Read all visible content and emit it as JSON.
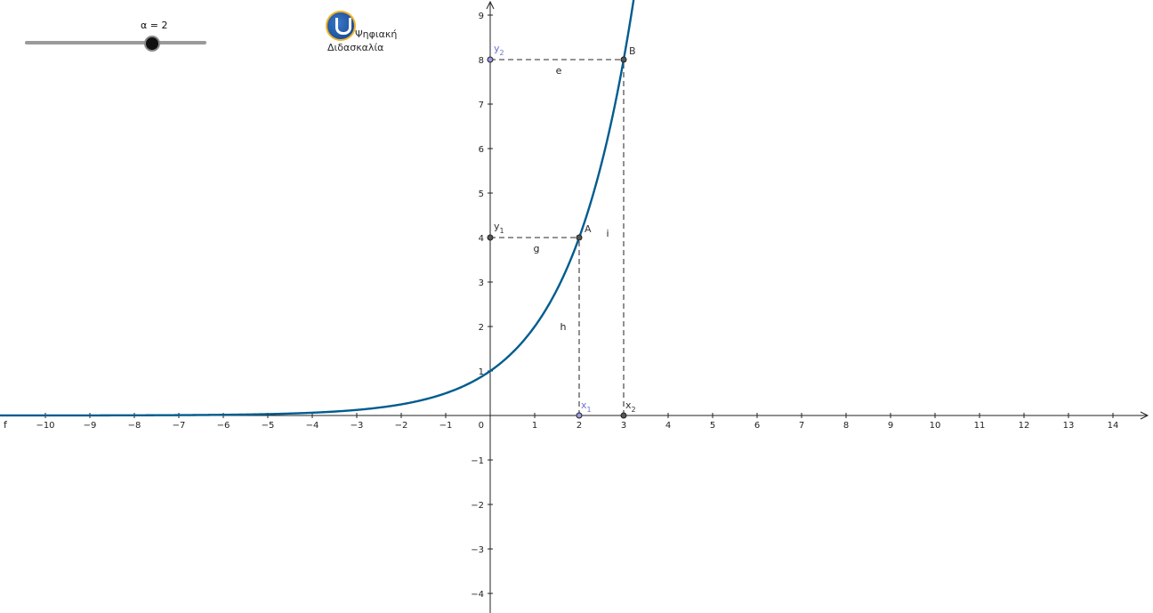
{
  "slider": {
    "label": "α = 2",
    "value": 2,
    "min": -5,
    "max": 5
  },
  "logo": {
    "line1": "Ψηφιακή",
    "line2": "Διδασκαλία"
  },
  "chart_data": {
    "type": "line",
    "function": "f(x) = α^x",
    "base": 2,
    "function_label": "f",
    "xlim": [
      -11,
      15
    ],
    "ylim": [
      -4.4,
      9.3
    ],
    "x_ticks": [
      -10,
      -9,
      -8,
      -7,
      -6,
      -5,
      -4,
      -3,
      -2,
      -1,
      1,
      2,
      3,
      4,
      5,
      6,
      7,
      8,
      9,
      10,
      11,
      12,
      13,
      14
    ],
    "y_ticks": [
      -4,
      -3,
      -2,
      -1,
      1,
      2,
      3,
      4,
      5,
      6,
      7,
      8,
      9
    ],
    "origin_label": "0",
    "grid": false,
    "curve_color": "#005c8f",
    "points": [
      {
        "label": "A",
        "x": 2,
        "y": 4,
        "color": "#333333"
      },
      {
        "label": "B",
        "x": 3,
        "y": 8,
        "color": "#333333"
      },
      {
        "label": "x",
        "sub": "1",
        "x": 2,
        "y": 0,
        "color": "#6f6fd0"
      },
      {
        "label": "x",
        "sub": "2",
        "x": 3,
        "y": 0,
        "color": "#333333"
      },
      {
        "label": "y",
        "sub": "1",
        "x": 0,
        "y": 4,
        "color": "#333333"
      },
      {
        "label": "y",
        "sub": "2",
        "x": 0,
        "y": 8,
        "color": "#6f6fd0"
      }
    ],
    "segments": [
      {
        "label": "g",
        "from": [
          0,
          4
        ],
        "to": [
          2,
          4
        ]
      },
      {
        "label": "h",
        "from": [
          2,
          0
        ],
        "to": [
          2,
          4
        ]
      },
      {
        "label": "e",
        "from": [
          0,
          8
        ],
        "to": [
          3,
          8
        ]
      },
      {
        "label": "i",
        "from": [
          3,
          0
        ],
        "to": [
          3,
          8
        ]
      }
    ]
  }
}
